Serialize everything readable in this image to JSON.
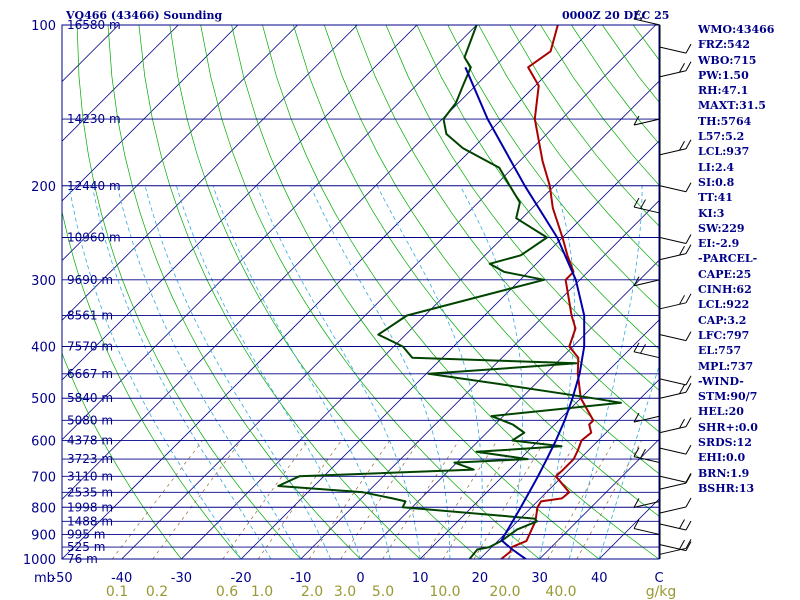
{
  "chart_data": {
    "type": "line",
    "title": "VQ466 (43466) Sounding",
    "time": "0000Z 20 DEC 25",
    "x_axis": {
      "unit_label": "C",
      "range": [
        -50,
        50
      ],
      "ticks": [
        "-50",
        "-40",
        "-30",
        "-20",
        "-10",
        "0",
        "10",
        "20",
        "30",
        "40",
        "C"
      ]
    },
    "y_axis": {
      "unit_label": "mb",
      "scale": "log-pressure",
      "range": [
        1000,
        100
      ],
      "ticks": [
        "100",
        "200",
        "300",
        "400",
        "500",
        "600",
        "700",
        "800",
        "900",
        "1000"
      ]
    },
    "height_labels": [
      {
        "p": 100,
        "label": "16580 m"
      },
      {
        "p": 150,
        "label": "14230 m"
      },
      {
        "p": 200,
        "label": "12440 m"
      },
      {
        "p": 250,
        "label": "10960 m"
      },
      {
        "p": 300,
        "label": "9690 m"
      },
      {
        "p": 350,
        "label": "8561 m"
      },
      {
        "p": 400,
        "label": "7570 m"
      },
      {
        "p": 450,
        "label": "6667 m"
      },
      {
        "p": 500,
        "label": "5840 m"
      },
      {
        "p": 550,
        "label": "5080 m"
      },
      {
        "p": 600,
        "label": "4378 m"
      },
      {
        "p": 650,
        "label": "3723 m"
      },
      {
        "p": 700,
        "label": "3110 m"
      },
      {
        "p": 750,
        "label": "2535 m"
      },
      {
        "p": 800,
        "label": "1998 m"
      },
      {
        "p": 850,
        "label": "1488 m"
      },
      {
        "p": 900,
        "label": "995 m"
      },
      {
        "p": 950,
        "label": "525 m"
      },
      {
        "p": 1000,
        "label": "76 m"
      }
    ],
    "mixing_ratio_labels": [
      "0.1",
      "0.2",
      "0.6",
      "1.0",
      "2.0",
      "3.0",
      "5.0",
      "10.0",
      "20.0",
      "40.0",
      "g/kg"
    ],
    "series": [
      {
        "name": "Temperature",
        "color": "#aa0000",
        "points": [
          [
            1000,
            23.6
          ],
          [
            970,
            23.9
          ],
          [
            950,
            23.4
          ],
          [
            925,
            24.8
          ],
          [
            900,
            24.2
          ],
          [
            850,
            23.0
          ],
          [
            800,
            21.0
          ],
          [
            780,
            20.6
          ],
          [
            770,
            23.6
          ],
          [
            750,
            23.8
          ],
          [
            700,
            18.9
          ],
          [
            680,
            19.0
          ],
          [
            650,
            19.0
          ],
          [
            625,
            18.2
          ],
          [
            600,
            17.2
          ],
          [
            580,
            17.5
          ],
          [
            560,
            15.8
          ],
          [
            550,
            15.8
          ],
          [
            500,
            10.0
          ],
          [
            450,
            5.4
          ],
          [
            420,
            2.8
          ],
          [
            400,
            -0.6
          ],
          [
            370,
            -2.6
          ],
          [
            350,
            -5.4
          ],
          [
            300,
            -12.4
          ],
          [
            290,
            -12.4
          ],
          [
            270,
            -16.2
          ],
          [
            250,
            -20.0
          ],
          [
            220,
            -26.6
          ],
          [
            200,
            -30.8
          ],
          [
            180,
            -36.1
          ],
          [
            150,
            -44.5
          ],
          [
            130,
            -49.4
          ],
          [
            120,
            -54.3
          ],
          [
            112,
            -53.2
          ],
          [
            100,
            -56.4
          ]
        ]
      },
      {
        "name": "Dewpoint",
        "color": "#004400",
        "points": [
          [
            1000,
            18.3
          ],
          [
            960,
            18.0
          ],
          [
            950,
            19.6
          ],
          [
            925,
            20.6
          ],
          [
            880,
            21.3
          ],
          [
            850,
            23.3
          ],
          [
            840,
            22.4
          ],
          [
            800,
            -1.6
          ],
          [
            780,
            -2.1
          ],
          [
            770,
            -4.8
          ],
          [
            750,
            -10.7
          ],
          [
            730,
            -26.0
          ],
          [
            700,
            -24.1
          ],
          [
            680,
            4.0
          ],
          [
            660,
            -0.4
          ],
          [
            650,
            11.3
          ],
          [
            630,
            1.5
          ],
          [
            615,
            14.8
          ],
          [
            600,
            5.6
          ],
          [
            580,
            6.3
          ],
          [
            560,
            3.0
          ],
          [
            540,
            -2.0
          ],
          [
            510,
            17.5
          ],
          [
            500,
            12.0
          ],
          [
            470,
            -6.2
          ],
          [
            450,
            -19.6
          ],
          [
            430,
            3.4
          ],
          [
            420,
            -25.0
          ],
          [
            400,
            -28.5
          ],
          [
            380,
            -34.6
          ],
          [
            350,
            -33.0
          ],
          [
            300,
            -16.0
          ],
          [
            290,
            -24.0
          ],
          [
            280,
            -27.8
          ],
          [
            270,
            -24.0
          ],
          [
            250,
            -22.6
          ],
          [
            230,
            -31.0
          ],
          [
            215,
            -33.0
          ],
          [
            200,
            -37.5
          ],
          [
            185,
            -42.3
          ],
          [
            170,
            -51.7
          ],
          [
            160,
            -56.8
          ],
          [
            150,
            -59.8
          ],
          [
            140,
            -60.4
          ],
          [
            130,
            -62.1
          ],
          [
            120,
            -63.9
          ],
          [
            115,
            -66.6
          ],
          [
            100,
            -70.0
          ]
        ]
      },
      {
        "name": "Parcel",
        "color": "#0000aa",
        "points": [
          [
            1000,
            27.7
          ],
          [
            980,
            25.8
          ],
          [
            960,
            23.9
          ],
          [
            940,
            22.1
          ],
          [
            922,
            20.5
          ],
          [
            900,
            20.1
          ],
          [
            850,
            19.2
          ],
          [
            800,
            18.2
          ],
          [
            750,
            17.1
          ],
          [
            700,
            15.9
          ],
          [
            650,
            14.5
          ],
          [
            600,
            12.9
          ],
          [
            550,
            11.0
          ],
          [
            500,
            8.6
          ],
          [
            450,
            5.7
          ],
          [
            400,
            1.9
          ],
          [
            350,
            -3.3
          ],
          [
            300,
            -10.7
          ],
          [
            250,
            -20.9
          ],
          [
            200,
            -35.0
          ],
          [
            150,
            -52.4
          ],
          [
            120,
            -64.8
          ]
        ]
      }
    ]
  },
  "indices": [
    "WMO:43466",
    "FRZ:542",
    "WBO:715",
    "PW:1.50",
    "RH:47.1",
    "MAXT:31.5",
    "TH:5764",
    "L57:5.2",
    "LCL:937",
    "LI:2.4",
    "SI:0.8",
    "TT:41",
    "KI:3",
    "SW:229",
    "EI:-2.9",
    "-PARCEL-",
    "CAPE:25",
    "CINH:62",
    "LCL:922",
    "CAP:3.2",
    "LFC:797",
    "EL:757",
    "MPL:737",
    "-WIND-",
    "STM:90/7",
    "HEL:20",
    "SHR+:0.0",
    "SRDS:12",
    "EHI:0.0",
    "BRN:1.9",
    "BSHR:13"
  ],
  "colors": {
    "frame": "#000088",
    "isobar": "#000088",
    "isotherm": "#000088",
    "dry_adiabat": "#00aa00",
    "moist_adiabat": "#33aadd",
    "mixing_ratio": "#996633",
    "wind_barb": "#000000"
  }
}
